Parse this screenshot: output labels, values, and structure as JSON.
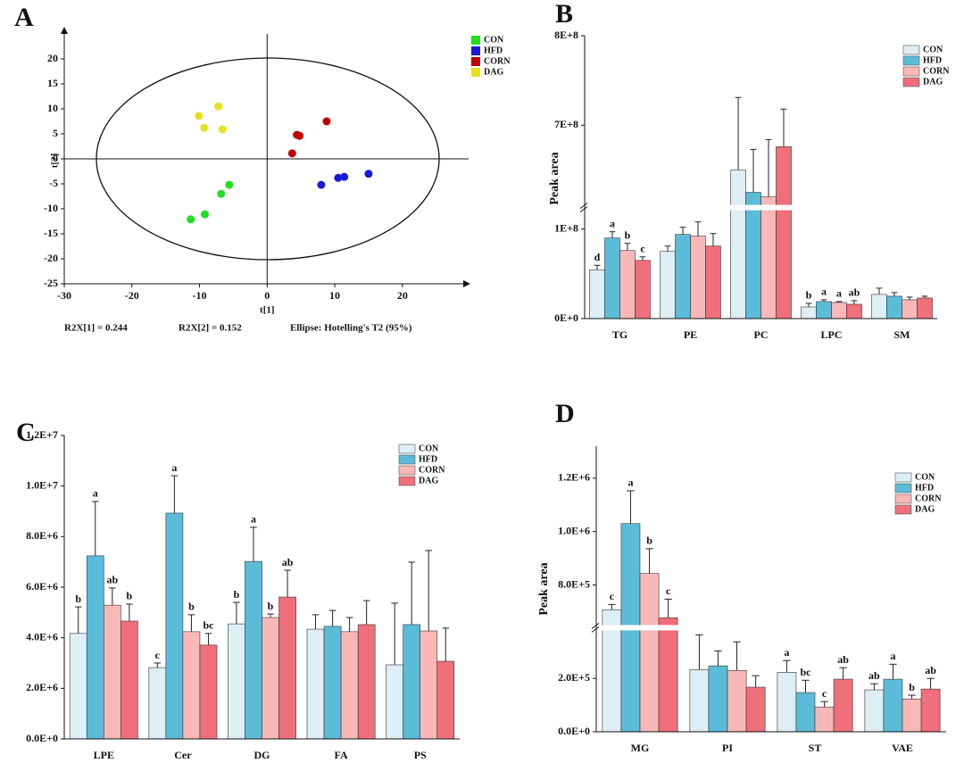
{
  "chart_data": [
    {
      "type": "scatter",
      "panel": "A",
      "x_label": "t[1]",
      "y_label": "t[2]",
      "annotations": [
        "R2X[1] = 0.244",
        "R2X[2] = 0.152",
        "Ellipse: Hotelling's T2 (95%)"
      ],
      "xlim": [
        -30,
        29
      ],
      "ylim": [
        -25,
        25
      ],
      "xticks": [
        -30,
        -20,
        -10,
        0,
        10,
        20
      ],
      "yticks": [
        -25,
        -20,
        -15,
        -10,
        -5,
        0,
        5,
        10,
        15,
        20
      ],
      "series": [
        {
          "name": "CON",
          "color": "#22dd22",
          "x": [
            -11.3,
            -9.2,
            -6.8,
            -5.6
          ],
          "y": [
            -12.1,
            -11.1,
            -7.0,
            -5.2
          ]
        },
        {
          "name": "HFD",
          "color": "#1a1ad6",
          "x": [
            8.0,
            10.5,
            11.4,
            15.0
          ],
          "y": [
            -5.2,
            -3.8,
            -3.6,
            -3.0
          ]
        },
        {
          "name": "CORN",
          "color": "#c00000",
          "x": [
            3.7,
            4.4,
            4.8,
            8.8
          ],
          "y": [
            1.1,
            4.8,
            4.6,
            7.5
          ]
        },
        {
          "name": "DAG",
          "color": "#e8e020",
          "x": [
            -10.1,
            -7.2,
            -9.3,
            -6.6
          ],
          "y": [
            8.6,
            10.5,
            6.2,
            5.9
          ]
        }
      ]
    },
    {
      "type": "bar",
      "panel": "B",
      "y_label": "Peak area",
      "categories": [
        "TG",
        "PE",
        "PC",
        "LPC",
        "SM"
      ],
      "ylim": [
        0,
        800000000
      ],
      "ybreak": [
        124000000,
        608000000
      ],
      "yticks": [
        {
          "value": 0,
          "label": "0E+0"
        },
        {
          "value": 100000000,
          "label": "1E+8"
        },
        {
          "value": 700000000,
          "label": "7E+8"
        },
        {
          "value": 800000000,
          "label": "8E+8"
        }
      ],
      "series": [
        {
          "name": "CON",
          "color": "#ddeef5",
          "values": [
            54500000,
            75000000,
            650000000,
            13000000,
            27000000
          ],
          "errors": [
            5000000,
            6000000,
            81000000,
            4000000,
            7000000
          ],
          "letters": [
            "d",
            null,
            null,
            "b",
            null
          ]
        },
        {
          "name": "HFD",
          "color": "#5bbcd9",
          "values": [
            90000000,
            94000000,
            625000000,
            19000000,
            25000000
          ],
          "errors": [
            7000000,
            8000000,
            48000000,
            2000000,
            4000000
          ],
          "letters": [
            "a",
            null,
            null,
            "a",
            null
          ]
        },
        {
          "name": "CORN",
          "color": "#f9b8b8",
          "values": [
            76000000,
            92000000,
            620000000,
            18000000,
            21000000
          ],
          "errors": [
            8000000,
            16000000,
            64000000,
            1000000,
            3000000
          ],
          "letters": [
            "b",
            null,
            null,
            "a",
            null
          ]
        },
        {
          "name": "DAG",
          "color": "#ef6f7a",
          "values": [
            65000000,
            81000000,
            676000000,
            16000000,
            23000000
          ],
          "errors": [
            4000000,
            14000000,
            42000000,
            4000000,
            2000000
          ],
          "letters": [
            "c",
            null,
            null,
            "ab",
            null
          ]
        }
      ]
    },
    {
      "type": "bar",
      "panel": "C",
      "categories": [
        "LPE",
        "Cer",
        "DG",
        "FA",
        "PS"
      ],
      "ylim": [
        0,
        12000000
      ],
      "yticks": [
        {
          "value": 0,
          "label": "0.0E+0"
        },
        {
          "value": 2000000,
          "label": "2.0E+6"
        },
        {
          "value": 4000000,
          "label": "4.0E+6"
        },
        {
          "value": 6000000,
          "label": "6.0E+6"
        },
        {
          "value": 8000000,
          "label": "8.0E+6"
        },
        {
          "value": 10000000,
          "label": "1.0E+7"
        },
        {
          "value": 12000000,
          "label": "1.2E+7"
        }
      ],
      "series": [
        {
          "name": "CON",
          "color": "#ddeef5",
          "values": [
            4170000,
            2820000,
            4550000,
            4340000,
            2930000
          ],
          "errors": [
            1050000,
            180000,
            850000,
            570000,
            2440000
          ],
          "letters": [
            "b",
            "c",
            "b",
            null,
            null
          ]
        },
        {
          "name": "HFD",
          "color": "#5bbcd9",
          "values": [
            7240000,
            8930000,
            7020000,
            4450000,
            4520000
          ],
          "errors": [
            2150000,
            1480000,
            1350000,
            630000,
            2470000
          ],
          "letters": [
            "a",
            "a",
            "a",
            null,
            null
          ]
        },
        {
          "name": "CORN",
          "color": "#f9b8b8",
          "values": [
            5290000,
            4240000,
            4800000,
            4240000,
            4270000
          ],
          "errors": [
            680000,
            670000,
            140000,
            560000,
            3180000
          ],
          "letters": [
            "ab",
            "b",
            "b",
            null,
            null
          ]
        },
        {
          "name": "DAG",
          "color": "#ef6f7a",
          "values": [
            4660000,
            3710000,
            5610000,
            4520000,
            3070000
          ],
          "errors": [
            670000,
            460000,
            1060000,
            950000,
            1310000
          ],
          "letters": [
            "b",
            "bc",
            "ab",
            null,
            null
          ]
        }
      ]
    },
    {
      "type": "bar",
      "panel": "D",
      "y_label": "Peak area",
      "categories": [
        "MG",
        "PI",
        "ST",
        "VAE"
      ],
      "ylim": [
        0,
        1320000
      ],
      "ybreak": [
        390000,
        640000
      ],
      "yticks": [
        {
          "value": 0,
          "label": "0.0E+0"
        },
        {
          "value": 200000,
          "label": "2.0E+5"
        },
        {
          "value": 800000,
          "label": "8.0E+5"
        },
        {
          "value": 1000000,
          "label": "1.0E+6"
        },
        {
          "value": 1200000,
          "label": "1.2E+6"
        }
      ],
      "series": [
        {
          "name": "CON",
          "color": "#ddeef5",
          "values": [
            707000,
            233000,
            223000,
            157000
          ],
          "errors": [
            20000,
            130000,
            44000,
            23000
          ],
          "letters": [
            "c",
            null,
            "a",
            "ab"
          ]
        },
        {
          "name": "HFD",
          "color": "#5bbcd9",
          "values": [
            1030000,
            247000,
            147000,
            197000
          ],
          "errors": [
            123000,
            56000,
            46000,
            56000
          ],
          "letters": [
            "a",
            null,
            "bc",
            "a"
          ]
        },
        {
          "name": "CORN",
          "color": "#f9b8b8",
          "values": [
            843000,
            230000,
            93000,
            123000
          ],
          "errors": [
            93000,
            107000,
            20000,
            14000
          ],
          "letters": [
            "b",
            null,
            "c",
            "b"
          ]
        },
        {
          "name": "DAG",
          "color": "#ef6f7a",
          "values": [
            677000,
            167000,
            197000,
            160000
          ],
          "errors": [
            70000,
            43000,
            43000,
            40000
          ],
          "letters": [
            "c",
            null,
            "ab",
            "ab"
          ]
        }
      ]
    }
  ]
}
